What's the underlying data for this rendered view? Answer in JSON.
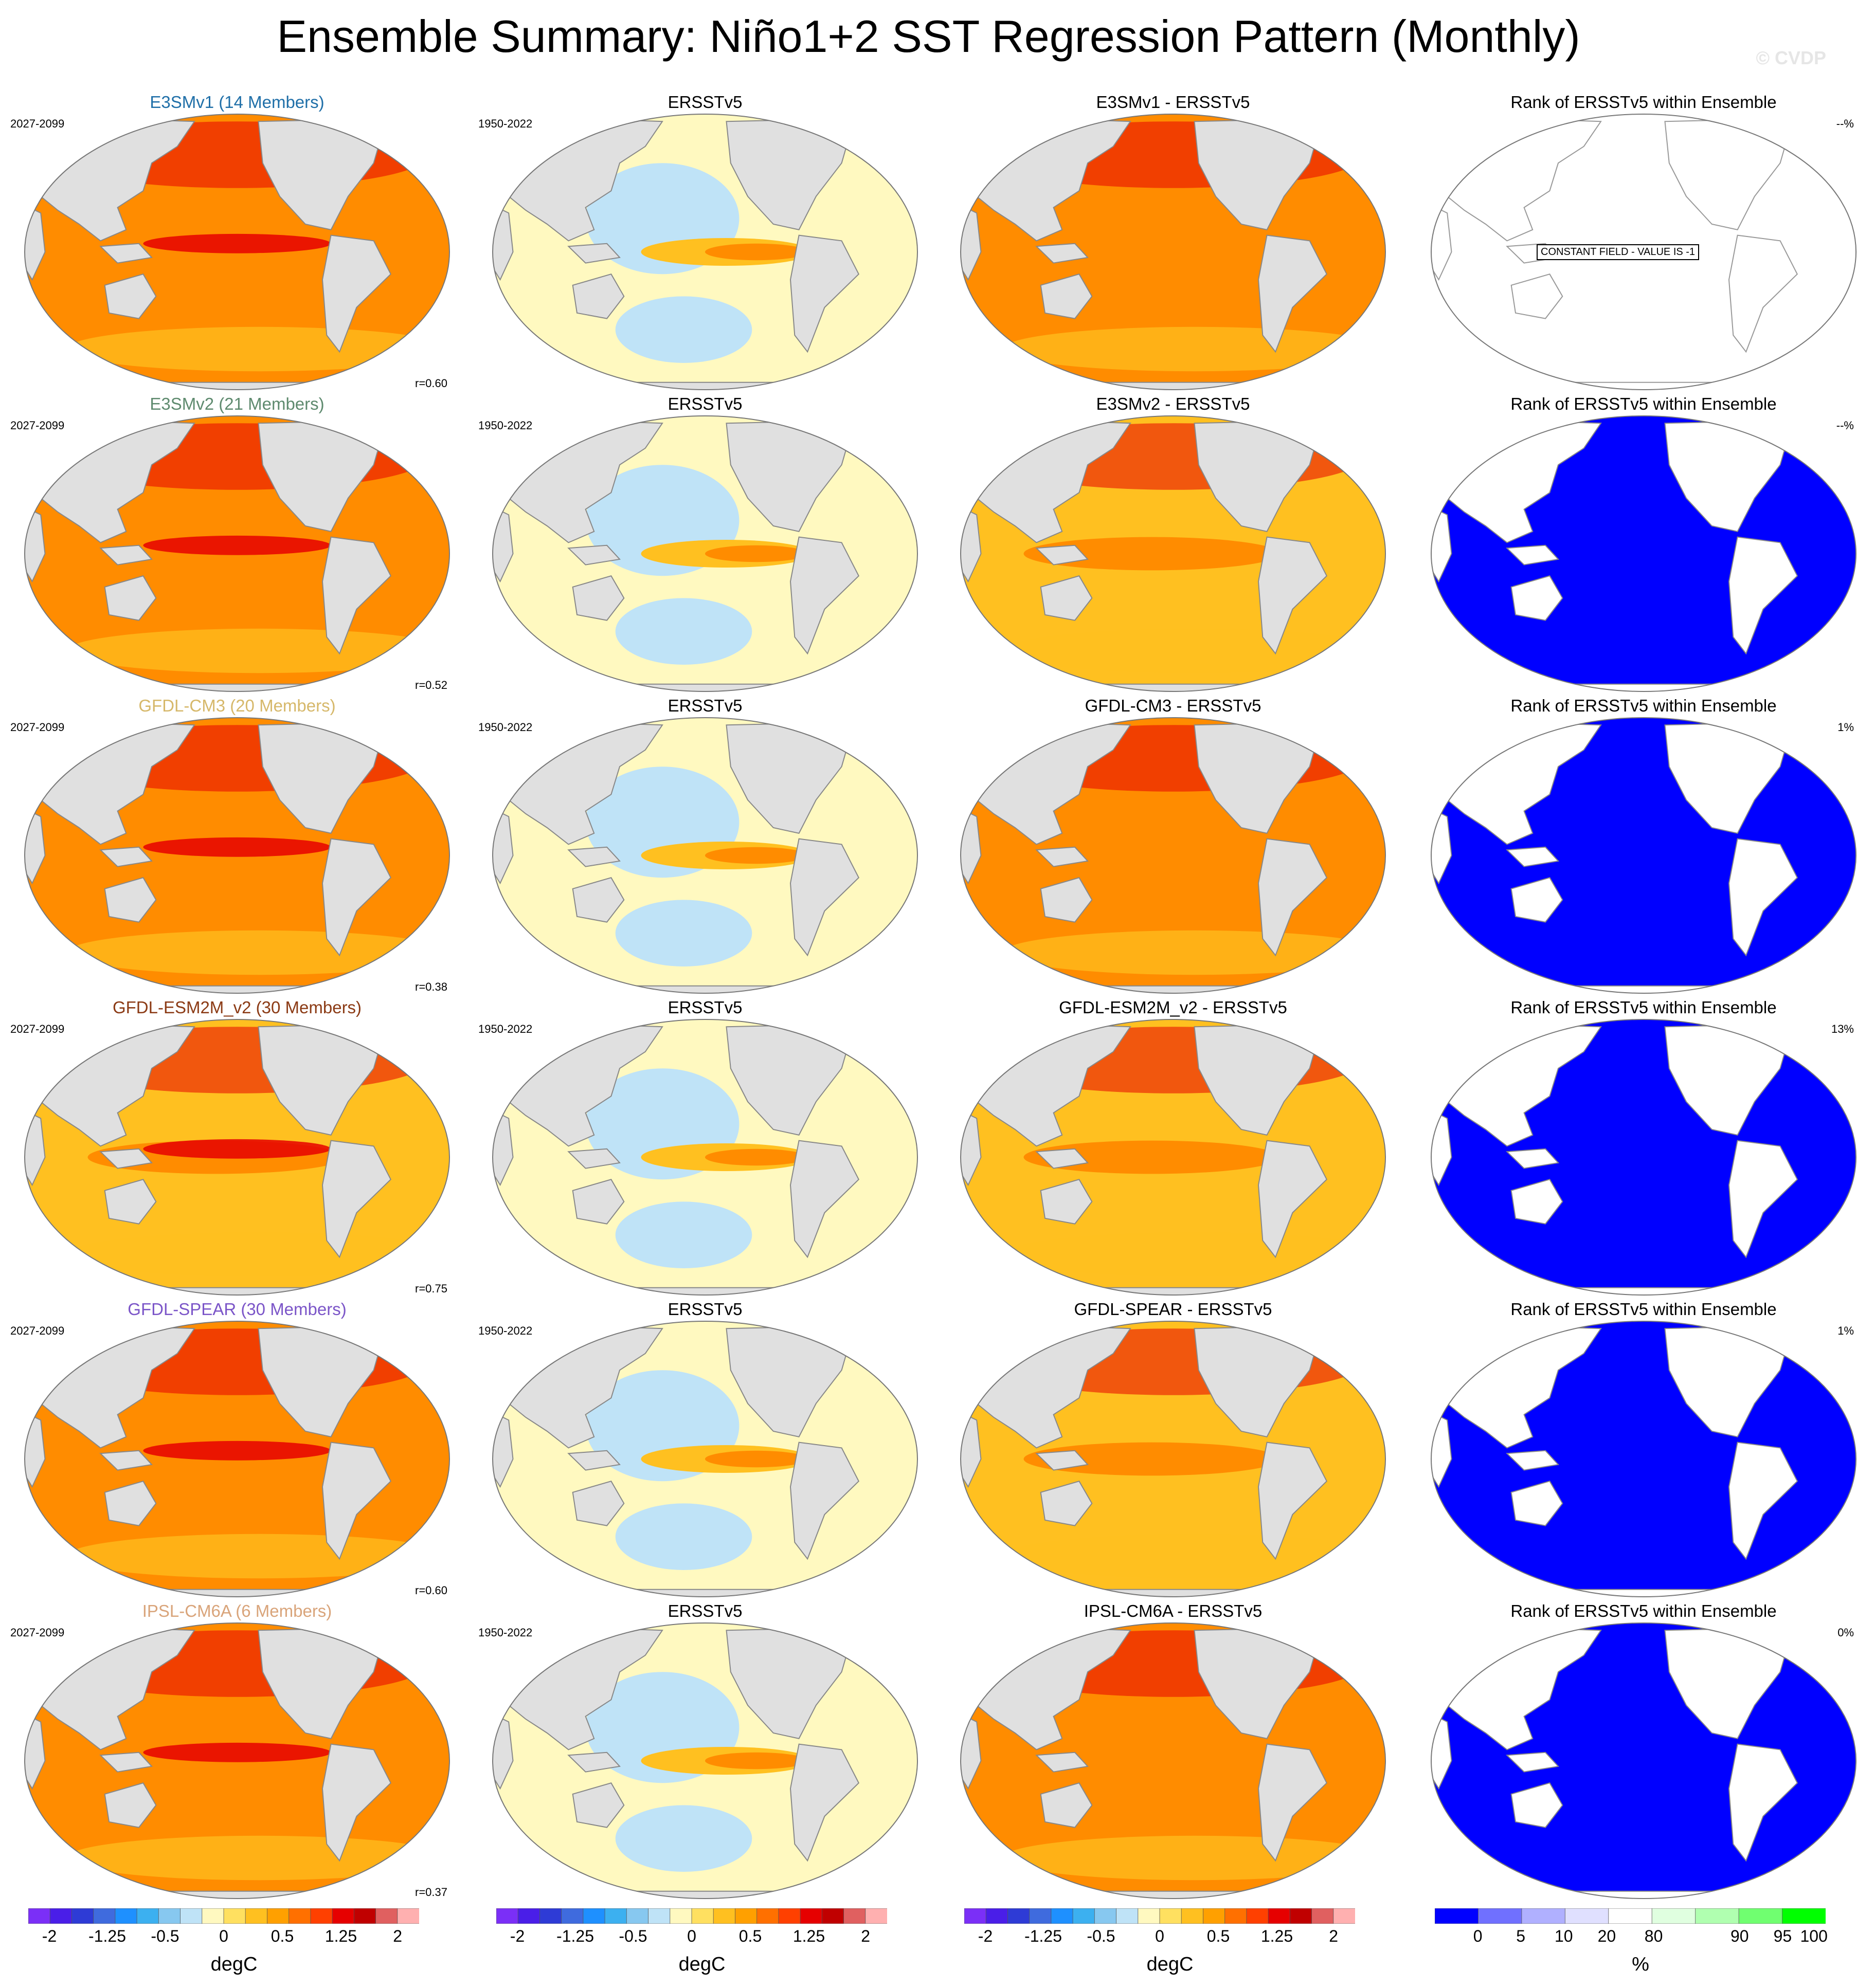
{
  "title": "Ensemble Summary: Niño1+2 SST Regression Pattern (Monthly)",
  "watermark": "© CVDP",
  "rows": [
    {
      "model": "E3SMv1 (14 Members)",
      "model_color": "#1f6fa8",
      "years": "2027-2099",
      "obs_years": "1950-2022",
      "obs": "ERSSTv5",
      "diff": "E3SMv1 - ERSSTv5",
      "rank_title": "Rank of ERSSTv5 within Ensemble",
      "rank_pct": "--%",
      "r": "r=0.60",
      "constant_note": "CONSTANT FIELD - VALUE IS -1",
      "model_level": 0.72,
      "diff_level": 0.62,
      "rank_kind": "constant"
    },
    {
      "model": "E3SMv2 (21 Members)",
      "model_color": "#5e8a6e",
      "years": "2027-2099",
      "obs_years": "1950-2022",
      "obs": "ERSSTv5",
      "diff": "E3SMv2 - ERSSTv5",
      "rank_title": "Rank of ERSSTv5 within Ensemble",
      "rank_pct": "--%",
      "r": "r=0.52",
      "model_level": 0.62,
      "diff_level": 0.55,
      "rank_kind": "blue"
    },
    {
      "model": "GFDL-CM3 (20 Members)",
      "model_color": "#d6b86a",
      "years": "2027-2099",
      "obs_years": "1950-2022",
      "obs": "ERSSTv5",
      "diff": "GFDL-CM3 - ERSSTv5",
      "rank_title": "Rank of ERSSTv5 within Ensemble",
      "rank_pct": "1%",
      "r": "r=0.38",
      "model_level": 0.72,
      "diff_level": 0.65,
      "rank_kind": "blue"
    },
    {
      "model": "GFDL-ESM2M_v2 (30 Members)",
      "model_color": "#8b3a14",
      "years": "2027-2099",
      "obs_years": "1950-2022",
      "obs": "ERSSTv5",
      "diff": "GFDL-ESM2M_v2 - ERSSTv5",
      "rank_title": "Rank of ERSSTv5 within Ensemble",
      "rank_pct": "13%",
      "r": "r=0.75",
      "model_level": 0.5,
      "diff_level": 0.45,
      "rank_kind": "mixed"
    },
    {
      "model": "GFDL-SPEAR (30 Members)",
      "model_color": "#7b55c8",
      "years": "2027-2099",
      "obs_years": "1950-2022",
      "obs": "ERSSTv5",
      "diff": "GFDL-SPEAR - ERSSTv5",
      "rank_title": "Rank of ERSSTv5 within Ensemble",
      "rank_pct": "1%",
      "r": "r=0.60",
      "model_level": 0.65,
      "diff_level": 0.6,
      "rank_kind": "blue"
    },
    {
      "model": "IPSL-CM6A (6 Members)",
      "model_color": "#d9a47a",
      "years": "2027-2099",
      "obs_years": "1950-2022",
      "obs": "ERSSTv5",
      "diff": "IPSL-CM6A - ERSSTv5",
      "rank_title": "Rank of ERSSTv5 within Ensemble",
      "rank_pct": "0%",
      "r": "r=0.37",
      "model_level": 0.8,
      "diff_level": 0.72,
      "rank_kind": "blue"
    }
  ],
  "colorbar_sst": {
    "unit": "degC",
    "ticks": [
      "-2",
      "-1.25",
      "-0.5",
      "0",
      "0.5",
      "1.25",
      "2"
    ],
    "colors": [
      "#7b2ff7",
      "#4a1ee8",
      "#2e3bd6",
      "#3f6bde",
      "#1e90ff",
      "#3cb0f0",
      "#87c8f0",
      "#bfe3f7",
      "#fff9c0",
      "#ffe060",
      "#ffc020",
      "#ffa000",
      "#ff7000",
      "#ff4000",
      "#e60000",
      "#c00000",
      "#e06060",
      "#ffb0b0"
    ]
  },
  "colorbar_rank": {
    "unit": "%",
    "ticks": [
      "0",
      "5",
      "10",
      "20",
      "80",
      "90",
      "95",
      "100"
    ],
    "colors": [
      "#0000ff",
      "#7070ff",
      "#b0b0ff",
      "#e0e0ff",
      "#ffffff",
      "#e0ffe0",
      "#b0ffb0",
      "#70ff70",
      "#00ff00"
    ]
  },
  "palette": {
    "land": "#e0e0e0",
    "ocean_warm_low": "#ffc020",
    "ocean_warm_mid": "#ff8c00",
    "ocean_hot": "#e60000",
    "ocean_cool": "#bfe3f7",
    "ocean_neutral": "#fff9c0",
    "rank_blue": "#0000ff"
  }
}
